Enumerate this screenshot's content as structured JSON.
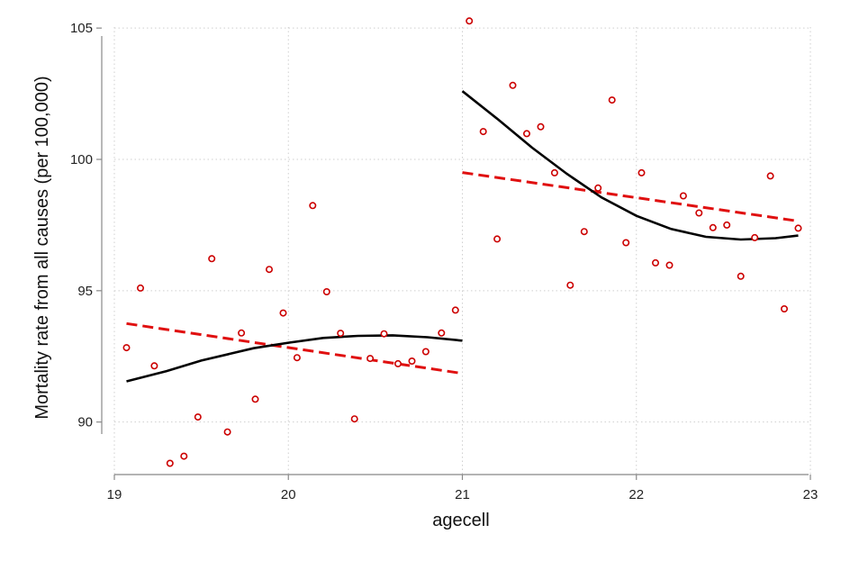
{
  "chart_data": {
    "type": "scatter",
    "title": "",
    "xlabel": "agecell",
    "ylabel": "Mortality rate from all causes (per 100,000)",
    "xlim": [
      19,
      23
    ],
    "ylim": [
      88,
      106
    ],
    "x_ticks": [
      19,
      20,
      21,
      22,
      23
    ],
    "y_ticks": [
      90,
      95,
      100,
      105
    ],
    "grid": true,
    "legend": "none",
    "colors": {
      "points": "#cc0000",
      "linear_fit": "#e01010",
      "quadratic_fit": "#000000"
    },
    "points": [
      [
        19.07,
        92.83
      ],
      [
        19.15,
        95.1
      ],
      [
        19.23,
        92.14
      ],
      [
        19.32,
        88.43
      ],
      [
        19.4,
        88.7
      ],
      [
        19.48,
        90.19
      ],
      [
        19.56,
        96.22
      ],
      [
        19.65,
        89.62
      ],
      [
        19.73,
        93.39
      ],
      [
        19.81,
        90.87
      ],
      [
        19.89,
        95.81
      ],
      [
        19.97,
        94.15
      ],
      [
        20.05,
        92.45
      ],
      [
        20.14,
        98.24
      ],
      [
        20.22,
        94.96
      ],
      [
        20.3,
        93.38
      ],
      [
        20.38,
        90.12
      ],
      [
        20.47,
        92.42
      ],
      [
        20.55,
        93.36
      ],
      [
        20.63,
        92.22
      ],
      [
        20.71,
        92.32
      ],
      [
        20.79,
        92.68
      ],
      [
        20.88,
        93.39
      ],
      [
        20.96,
        94.26
      ],
      [
        21.04,
        105.27
      ],
      [
        21.12,
        101.06
      ],
      [
        21.2,
        96.97
      ],
      [
        21.29,
        102.82
      ],
      [
        21.37,
        100.98
      ],
      [
        21.45,
        101.24
      ],
      [
        21.53,
        99.49
      ],
      [
        21.62,
        95.21
      ],
      [
        21.7,
        97.25
      ],
      [
        21.78,
        98.91
      ],
      [
        21.86,
        102.26
      ],
      [
        21.94,
        96.83
      ],
      [
        22.03,
        99.49
      ],
      [
        22.11,
        96.06
      ],
      [
        22.19,
        95.97
      ],
      [
        22.27,
        98.61
      ],
      [
        22.36,
        97.96
      ],
      [
        22.44,
        97.4
      ],
      [
        22.52,
        97.5
      ],
      [
        22.6,
        95.55
      ],
      [
        22.68,
        97.02
      ],
      [
        22.77,
        99.37
      ],
      [
        22.85,
        94.31
      ],
      [
        22.93,
        97.38
      ]
    ],
    "fits": [
      {
        "style": "dashed",
        "segment": "left",
        "x": [
          19.07,
          21.0
        ],
        "y": [
          93.75,
          91.85
        ]
      },
      {
        "style": "dashed",
        "segment": "right",
        "x": [
          21.0,
          22.93
        ],
        "y": [
          99.5,
          97.65
        ]
      },
      {
        "style": "solid",
        "segment": "left",
        "x": [
          19.07,
          19.3,
          19.5,
          19.8,
          20.0,
          20.2,
          20.4,
          20.6,
          20.8,
          21.0
        ],
        "y": [
          91.55,
          91.94,
          92.34,
          92.81,
          93.02,
          93.2,
          93.28,
          93.3,
          93.23,
          93.1
        ]
      },
      {
        "style": "solid",
        "segment": "right",
        "x": [
          21.0,
          21.2,
          21.4,
          21.6,
          21.8,
          22.0,
          22.2,
          22.4,
          22.6,
          22.8,
          22.93
        ],
        "y": [
          102.6,
          101.55,
          100.45,
          99.45,
          98.55,
          97.85,
          97.35,
          97.05,
          96.95,
          97.0,
          97.1
        ]
      }
    ]
  }
}
